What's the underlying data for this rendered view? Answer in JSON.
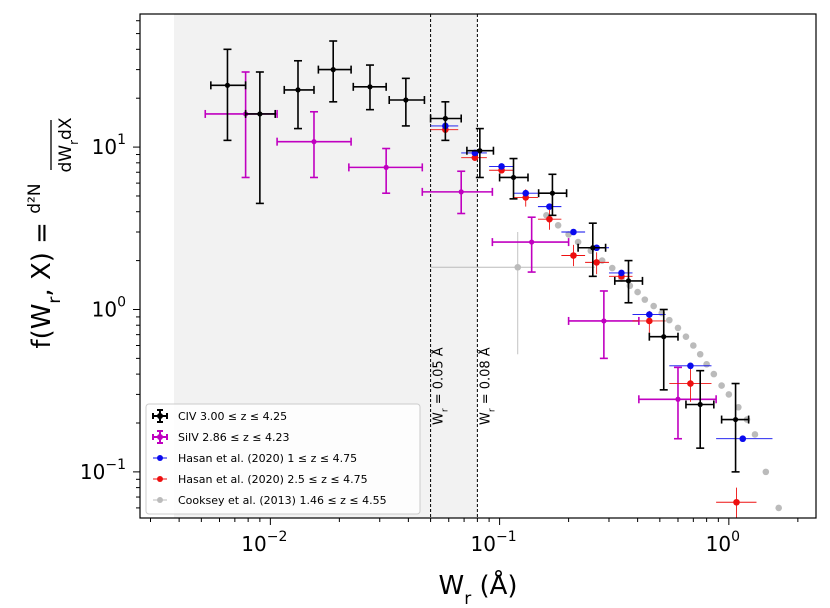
{
  "chart_data": {
    "type": "scatter",
    "xscale": "log",
    "yscale": "log",
    "xlim": [
      0.0027,
      2.4
    ],
    "ylim": [
      0.052,
      66
    ],
    "xlabel": "W_r (Å)",
    "ylabel": "f(W_r, X) = d²N / dW_r dX",
    "x_ticks": [
      {
        "value": 0.01,
        "base": "10",
        "exp": "−2"
      },
      {
        "value": 0.1,
        "base": "10",
        "exp": "−1"
      },
      {
        "value": 1,
        "base": "10",
        "exp": "0"
      }
    ],
    "y_ticks": [
      {
        "value": 0.1,
        "base": "10",
        "exp": "−1"
      },
      {
        "value": 1,
        "base": "10",
        "exp": "0"
      },
      {
        "value": 10,
        "base": "10",
        "exp": "1"
      }
    ],
    "shaded_region": [
      0.0038,
      0.08
    ],
    "vlines": [
      {
        "x": 0.05,
        "label": "W_r = 0.05 Å"
      },
      {
        "x": 0.08,
        "label": "W_r = 0.08 Å"
      }
    ],
    "legend_position": "lower-left",
    "series": [
      {
        "name": "CIV   3.00 ≤ z ≤ 4.25",
        "color": "#000000",
        "marker": "circle-capped",
        "points": [
          {
            "x": 0.0065,
            "y": 24,
            "xerr": [
              0.0055,
              0.0078
            ],
            "yerr": [
              11,
              40
            ]
          },
          {
            "x": 0.009,
            "y": 16,
            "xerr": [
              0.0078,
              0.0105
            ],
            "yerr": [
              4.5,
              29
            ]
          },
          {
            "x": 0.0132,
            "y": 22.5,
            "xerr": [
              0.0115,
              0.0155
            ],
            "yerr": [
              13,
              34
            ]
          },
          {
            "x": 0.0188,
            "y": 30,
            "xerr": [
              0.0162,
              0.0225
            ],
            "yerr": [
              19,
              45
            ]
          },
          {
            "x": 0.0272,
            "y": 23.5,
            "xerr": [
              0.023,
              0.032
            ],
            "yerr": [
              17,
              32
            ]
          },
          {
            "x": 0.039,
            "y": 19.5,
            "xerr": [
              0.033,
              0.047
            ],
            "yerr": [
              13.5,
              26.5
            ]
          },
          {
            "x": 0.058,
            "y": 15,
            "xerr": [
              0.05,
              0.068
            ],
            "yerr": [
              11,
              19
            ]
          },
          {
            "x": 0.082,
            "y": 9.5,
            "xerr": [
              0.072,
              0.094
            ],
            "yerr": [
              6.5,
              13
            ]
          },
          {
            "x": 0.115,
            "y": 6.5,
            "xerr": [
              0.1,
              0.133
            ],
            "yerr": [
              4.8,
              8.5
            ]
          },
          {
            "x": 0.17,
            "y": 5.2,
            "xerr": [
              0.148,
              0.196
            ],
            "yerr": [
              3.8,
              6.8
            ]
          },
          {
            "x": 0.255,
            "y": 2.4,
            "xerr": [
              0.22,
              0.29
            ],
            "yerr": [
              1.6,
              3.4
            ]
          },
          {
            "x": 0.365,
            "y": 1.5,
            "xerr": [
              0.318,
              0.42
            ],
            "yerr": [
              1.1,
              2.0
            ]
          },
          {
            "x": 0.52,
            "y": 0.68,
            "xerr": [
              0.45,
              0.6
            ],
            "yerr": [
              0.32,
              1.0
            ]
          },
          {
            "x": 0.75,
            "y": 0.26,
            "xerr": [
              0.65,
              0.86
            ],
            "yerr": [
              0.14,
              0.42
            ]
          },
          {
            "x": 1.07,
            "y": 0.21,
            "xerr": [
              0.93,
              1.22
            ],
            "yerr": [
              0.1,
              0.35
            ]
          }
        ]
      },
      {
        "name": "SiIV   2.86 ≤ z ≤ 4.23",
        "color": "#c000c0",
        "marker": "circle-capped",
        "points": [
          {
            "x": 0.0078,
            "y": 16,
            "xerr": [
              0.0052,
              0.0107
            ],
            "yerr": [
              6.5,
              29
            ]
          },
          {
            "x": 0.0155,
            "y": 10.8,
            "xerr": [
              0.0107,
              0.0225
            ],
            "yerr": [
              6.5,
              16.5
            ]
          },
          {
            "x": 0.032,
            "y": 7.5,
            "xerr": [
              0.022,
              0.046
            ],
            "yerr": [
              5.2,
              9.8
            ]
          },
          {
            "x": 0.068,
            "y": 5.3,
            "xerr": [
              0.046,
              0.093
            ],
            "yerr": [
              3.9,
              7.1
            ]
          },
          {
            "x": 0.138,
            "y": 2.6,
            "xerr": [
              0.093,
              0.2
            ],
            "yerr": [
              1.7,
              3.7
            ]
          },
          {
            "x": 0.285,
            "y": 0.85,
            "xerr": [
              0.2,
              0.405
            ],
            "yerr": [
              0.5,
              1.3
            ]
          },
          {
            "x": 0.6,
            "y": 0.28,
            "xerr": [
              0.405,
              0.88
            ],
            "yerr": [
              0.16,
              0.44
            ]
          }
        ]
      },
      {
        "name": "Hasan et al. (2020) 1 ≤ z ≤ 4.75",
        "color": "#0a0aee",
        "marker": "dot",
        "points": [
          {
            "x": 0.058,
            "y": 13.5,
            "xerr": [
              0.05,
              0.066
            ]
          },
          {
            "x": 0.078,
            "y": 9.2,
            "xerr": [
              0.068,
              0.088
            ]
          },
          {
            "x": 0.102,
            "y": 7.6,
            "xerr": [
              0.09,
              0.115
            ]
          },
          {
            "x": 0.13,
            "y": 5.2,
            "xerr": [
              0.115,
              0.147
            ]
          },
          {
            "x": 0.165,
            "y": 4.3,
            "xerr": [
              0.147,
              0.186
            ]
          },
          {
            "x": 0.21,
            "y": 3.0,
            "xerr": [
              0.186,
              0.236
            ]
          },
          {
            "x": 0.265,
            "y": 2.4,
            "xerr": [
              0.236,
              0.3
            ]
          },
          {
            "x": 0.34,
            "y": 1.68,
            "xerr": [
              0.3,
              0.38
            ]
          },
          {
            "x": 0.45,
            "y": 0.93,
            "xerr": [
              0.38,
              0.53
            ]
          },
          {
            "x": 0.68,
            "y": 0.45,
            "xerr": [
              0.55,
              0.84
            ]
          },
          {
            "x": 1.15,
            "y": 0.16,
            "xerr": [
              0.88,
              1.55
            ]
          }
        ]
      },
      {
        "name": "Hasan et al. (2020) 2.5 ≤ z ≤ 4.75",
        "color": "#ee1010",
        "marker": "dot",
        "points": [
          {
            "x": 0.058,
            "y": 12.8,
            "xerr": [
              0.05,
              0.066
            ]
          },
          {
            "x": 0.078,
            "y": 8.6,
            "xerr": [
              0.068,
              0.088
            ]
          },
          {
            "x": 0.102,
            "y": 7.2,
            "xerr": [
              0.09,
              0.115
            ]
          },
          {
            "x": 0.13,
            "y": 4.9,
            "xerr": [
              0.115,
              0.147
            ],
            "yerr": [
              4.3,
              5.5
            ]
          },
          {
            "x": 0.165,
            "y": 3.6,
            "xerr": [
              0.147,
              0.186
            ],
            "yerr": [
              3.1,
              4.1
            ]
          },
          {
            "x": 0.21,
            "y": 2.15,
            "xerr": [
              0.186,
              0.236
            ],
            "yerr": [
              1.85,
              2.5
            ]
          },
          {
            "x": 0.265,
            "y": 1.95,
            "xerr": [
              0.236,
              0.3
            ],
            "yerr": [
              1.65,
              2.25
            ]
          },
          {
            "x": 0.34,
            "y": 1.6,
            "xerr": [
              0.3,
              0.38
            ]
          },
          {
            "x": 0.45,
            "y": 0.85,
            "xerr": [
              0.38,
              0.53
            ],
            "yerr": [
              0.72,
              0.98
            ]
          },
          {
            "x": 0.68,
            "y": 0.35,
            "xerr": [
              0.55,
              0.84
            ],
            "yerr": [
              0.27,
              0.44
            ]
          },
          {
            "x": 1.08,
            "y": 0.065,
            "xerr": [
              0.88,
              1.32
            ],
            "yerr": [
              0.052,
              0.08
            ]
          }
        ]
      },
      {
        "name": "Cooksey et al. (2013) 1.46 ≤ z ≤ 4.55",
        "color": "#bbbbbb",
        "marker": "dot",
        "points": [
          {
            "x": 0.12,
            "y": 1.82,
            "xerr": [
              0.05,
              0.26
            ],
            "yerr": [
              0.53,
              3.0
            ]
          },
          {
            "x": 0.16,
            "y": 3.8
          },
          {
            "x": 0.18,
            "y": 3.3
          },
          {
            "x": 0.2,
            "y": 2.9
          },
          {
            "x": 0.22,
            "y": 2.6
          },
          {
            "x": 0.25,
            "y": 2.3
          },
          {
            "x": 0.28,
            "y": 2.0
          },
          {
            "x": 0.31,
            "y": 1.8
          },
          {
            "x": 0.34,
            "y": 1.55
          },
          {
            "x": 0.37,
            "y": 1.4
          },
          {
            "x": 0.4,
            "y": 1.28
          },
          {
            "x": 0.43,
            "y": 1.15
          },
          {
            "x": 0.47,
            "y": 1.05
          },
          {
            "x": 0.51,
            "y": 0.95
          },
          {
            "x": 0.55,
            "y": 0.86
          },
          {
            "x": 0.6,
            "y": 0.77
          },
          {
            "x": 0.65,
            "y": 0.68
          },
          {
            "x": 0.7,
            "y": 0.6
          },
          {
            "x": 0.75,
            "y": 0.53
          },
          {
            "x": 0.8,
            "y": 0.46
          },
          {
            "x": 0.86,
            "y": 0.4
          },
          {
            "x": 0.93,
            "y": 0.34
          },
          {
            "x": 1.0,
            "y": 0.3
          },
          {
            "x": 1.1,
            "y": 0.25
          },
          {
            "x": 1.2,
            "y": 0.21
          },
          {
            "x": 1.3,
            "y": 0.17
          },
          {
            "x": 1.45,
            "y": 0.1
          },
          {
            "x": 1.65,
            "y": 0.06
          }
        ]
      }
    ]
  }
}
